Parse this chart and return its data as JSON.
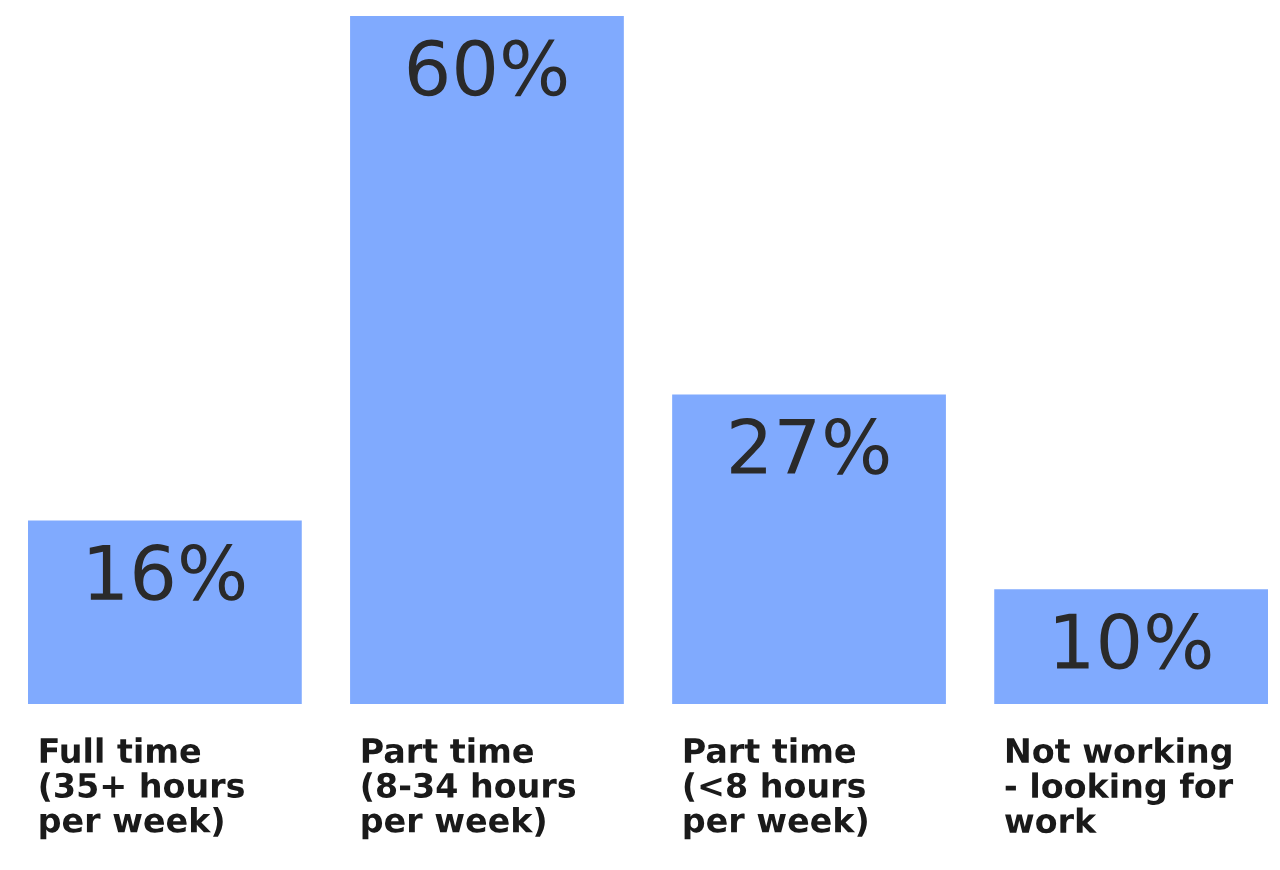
{
  "chart_data": {
    "type": "bar",
    "categories": [
      "Full time\n(35+ hours\nper week)",
      "Part time\n(8-34 hours\nper week)",
      "Part time\n(<8 hours\nper week)",
      "Not working\n- looking for\nwork"
    ],
    "values": [
      16,
      60,
      27,
      10
    ],
    "value_labels": [
      "16%",
      "60%",
      "27%",
      "10%"
    ],
    "color": "#80aafe",
    "ylim": [
      0,
      60
    ],
    "tick_labels": "x"
  }
}
